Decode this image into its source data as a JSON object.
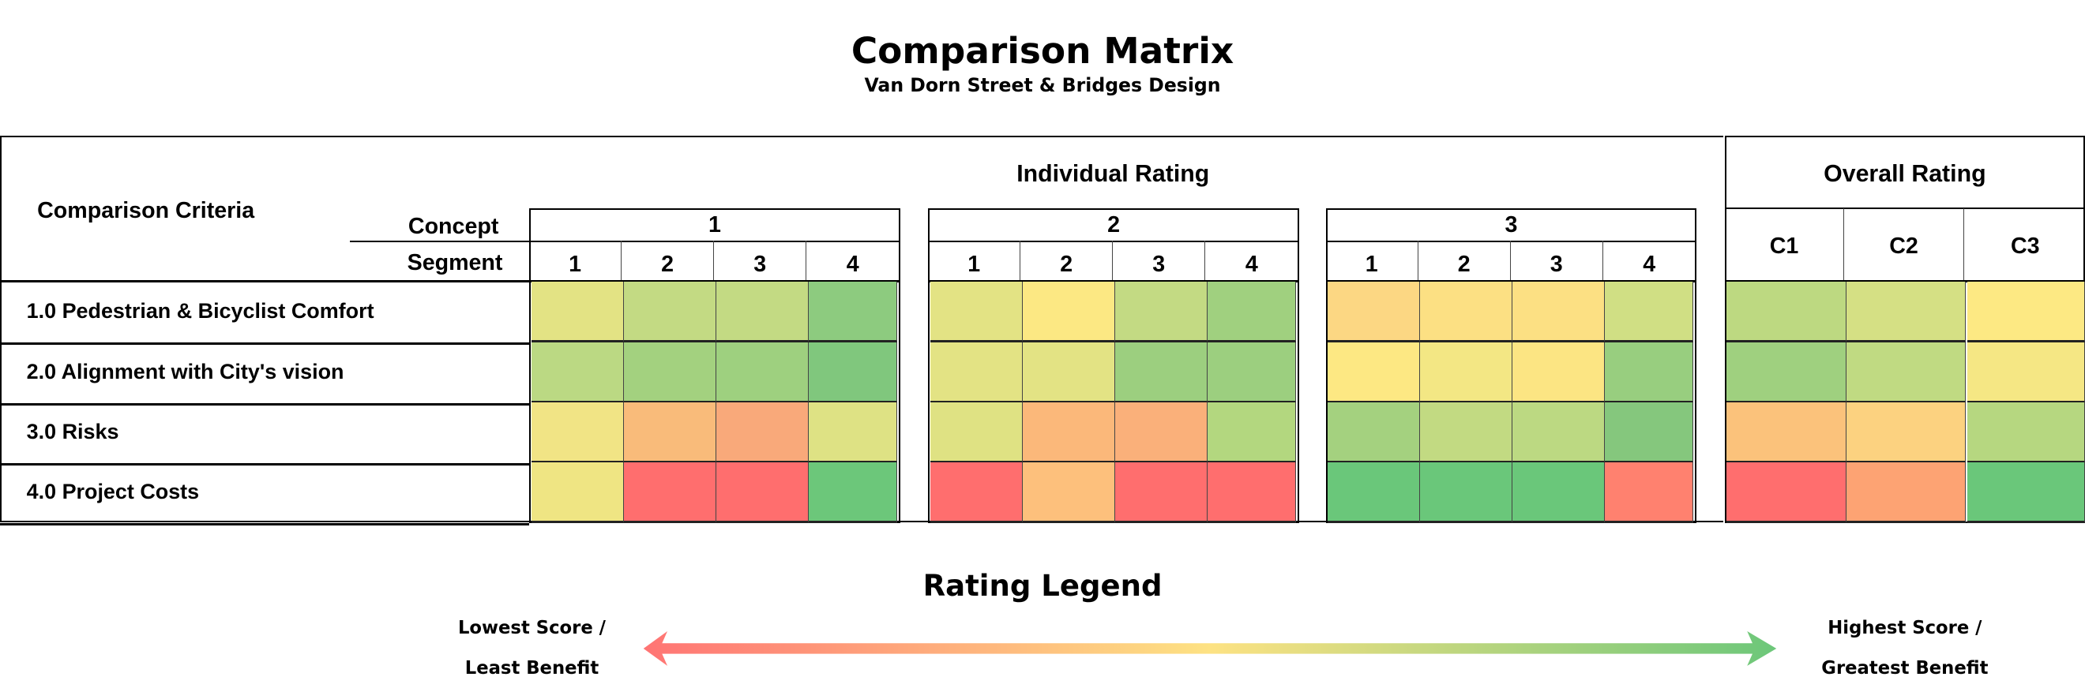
{
  "title": "Comparison Matrix",
  "subtitle": "Van Dorn Street & Bridges Design",
  "header": {
    "criteria_label": "Comparison Criteria",
    "individual_label": "Individual Rating",
    "overall_label": "Overall Rating",
    "concept_label": "Concept",
    "segment_label": "Segment"
  },
  "chart_data": {
    "type": "heatmap",
    "concepts": [
      "1",
      "2",
      "3"
    ],
    "segments": [
      "1",
      "2",
      "3",
      "4"
    ],
    "overall_columns": [
      "C1",
      "C2",
      "C3"
    ],
    "rows": [
      {
        "label": "1.0 Pedestrian & Bicyclist Comfort",
        "individual": [
          [
            "#e3e384",
            "#c3da83",
            "#c3da83",
            "#8dcb7f"
          ],
          [
            "#e3e384",
            "#fce883",
            "#c3da83",
            "#a0d07f"
          ],
          [
            "#fcd783",
            "#fce083",
            "#fce083",
            "#d0df84"
          ]
        ],
        "overall": [
          "#bdd981",
          "#d5e084",
          "#fde983"
        ]
      },
      {
        "label": "2.0 Alignment with City's vision",
        "individual": [
          [
            "#bbd983",
            "#a3d17f",
            "#9ed07f",
            "#80c77d"
          ],
          [
            "#e3e384",
            "#e3e384",
            "#9ccf7f",
            "#9ccf7f"
          ],
          [
            "#fde883",
            "#f3e784",
            "#fce583",
            "#98ce7f"
          ]
        ],
        "overall": [
          "#9fd07f",
          "#c0da82",
          "#f5e784"
        ]
      },
      {
        "label": "3.0 Risks",
        "individual": [
          [
            "#f1e485",
            "#f9bb7a",
            "#f9a97a",
            "#dee284"
          ],
          [
            "#dfe283",
            "#fbb87a",
            "#fab07a",
            "#b3d77f"
          ],
          [
            "#a4d17f",
            "#c2da82",
            "#bcd982",
            "#85c77d"
          ]
        ],
        "overall": [
          "#fbc27b",
          "#fcd280",
          "#b6d780"
        ]
      },
      {
        "label": "4.0 Project Costs",
        "individual": [
          [
            "#efe583",
            "#ff6e6e",
            "#ff6e6e",
            "#6cc77a"
          ],
          [
            "#ff6e6e",
            "#fdc07c",
            "#ff6e6e",
            "#ff6e6e"
          ],
          [
            "#6ac77a",
            "#6ac77a",
            "#6ac77a",
            "#ff816f"
          ]
        ],
        "overall": [
          "#ff6e6e",
          "#fda373",
          "#6ac77a"
        ]
      }
    ]
  },
  "legend": {
    "title": "Rating Legend",
    "low_line1": "Lowest Score /",
    "low_line2": "Least Benefit",
    "high_line1": "Highest Score /",
    "high_line2": "Greatest Benefit",
    "gradient": [
      "#ff7474",
      "#fde283",
      "#6cc77a"
    ]
  }
}
